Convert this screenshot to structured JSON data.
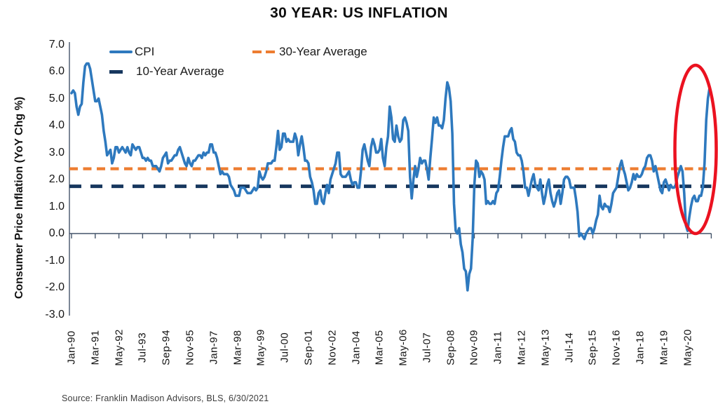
{
  "title": "30 YEAR: US INFLATION",
  "legend": {
    "cpi": "CPI",
    "avg30": "30-Year Average",
    "avg10": "10-Year Average"
  },
  "y_axis": {
    "title": "Consumer Price Inflation (YoY Chg %)",
    "ticks": [
      "7.0",
      "6.0",
      "5.0",
      "4.0",
      "3.0",
      "2.0",
      "1.0",
      "0.0",
      "-1.0",
      "-2.0",
      "-3.0"
    ]
  },
  "source": "Source: Franklin Madison Advisors, BLS, 6/30/2021",
  "colors": {
    "cpi_line": "#2E79BE",
    "avg30_line": "#ED7D31",
    "avg10_line": "#17375E",
    "axis": "#44546A",
    "highlight_ellipse": "#EB1220"
  },
  "chart_data": {
    "type": "line",
    "title": "30 YEAR: US INFLATION",
    "xlabel": "",
    "ylabel": "Consumer Price Inflation (YoY Chg %)",
    "ylim": [
      -3.0,
      7.0
    ],
    "y_tick_step": 1.0,
    "grid": false,
    "legend_position": "top-left inside",
    "frequency": "monthly",
    "x_start": "Jan-1990",
    "x_end": "Jun-2021",
    "x_tick_labels": [
      "Jan-90",
      "Mar-91",
      "May-92",
      "Jul-93",
      "Sep-94",
      "Nov-95",
      "Jan-97",
      "Mar-98",
      "May-99",
      "Jul-00",
      "Sep-01",
      "Nov-02",
      "Jan-04",
      "Mar-05",
      "May-06",
      "Jul-07",
      "Sep-08",
      "Nov-09",
      "Jan-11",
      "Mar-12",
      "May-13",
      "Jul-14",
      "Sep-15",
      "Nov-16",
      "Jan-18",
      "Mar-19",
      "May-20"
    ],
    "x_tick_interval_months": 14,
    "series": [
      {
        "name": "CPI",
        "type": "line",
        "color": "#2E79BE",
        "values": [
          5.2,
          5.3,
          5.2,
          4.7,
          4.4,
          4.7,
          4.8,
          5.6,
          6.2,
          6.3,
          6.3,
          6.1,
          5.7,
          5.3,
          4.9,
          4.9,
          5.0,
          4.7,
          4.4,
          3.8,
          3.4,
          2.9,
          3.0,
          3.1,
          2.6,
          2.8,
          3.2,
          3.2,
          3.0,
          3.1,
          3.2,
          3.1,
          3.0,
          3.2,
          3.0,
          2.9,
          3.3,
          3.2,
          3.1,
          3.2,
          3.2,
          3.0,
          2.8,
          2.8,
          2.7,
          2.8,
          2.7,
          2.7,
          2.5,
          2.5,
          2.5,
          2.4,
          2.3,
          2.5,
          2.8,
          2.9,
          3.0,
          2.6,
          2.7,
          2.7,
          2.8,
          2.9,
          2.9,
          3.1,
          3.2,
          3.0,
          2.8,
          2.6,
          2.5,
          2.8,
          2.6,
          2.5,
          2.7,
          2.7,
          2.8,
          2.9,
          2.9,
          2.8,
          3.0,
          2.9,
          3.0,
          3.0,
          3.3,
          3.3,
          3.0,
          3.0,
          2.8,
          2.5,
          2.2,
          2.3,
          2.2,
          2.2,
          2.2,
          2.1,
          1.8,
          1.7,
          1.6,
          1.4,
          1.4,
          1.4,
          1.7,
          1.7,
          1.7,
          1.6,
          1.5,
          1.5,
          1.5,
          1.6,
          1.7,
          1.6,
          1.7,
          2.3,
          2.1,
          2.0,
          2.1,
          2.3,
          2.6,
          2.6,
          2.6,
          2.7,
          2.7,
          3.2,
          3.8,
          3.1,
          3.2,
          3.7,
          3.7,
          3.4,
          3.5,
          3.4,
          3.4,
          3.4,
          3.7,
          3.5,
          2.9,
          3.3,
          3.6,
          3.2,
          2.7,
          2.7,
          2.6,
          2.1,
          1.9,
          1.6,
          1.1,
          1.1,
          1.5,
          1.6,
          1.2,
          1.1,
          1.5,
          1.8,
          1.5,
          2.0,
          2.2,
          2.4,
          2.6,
          3.0,
          3.0,
          2.2,
          2.1,
          2.1,
          2.1,
          2.2,
          2.3,
          2.0,
          1.8,
          1.9,
          1.9,
          1.7,
          1.7,
          2.3,
          3.1,
          3.3,
          3.0,
          2.7,
          2.5,
          3.2,
          3.5,
          3.3,
          3.0,
          3.0,
          3.1,
          3.5,
          2.8,
          2.5,
          3.2,
          3.6,
          4.7,
          4.3,
          3.5,
          3.4,
          4.0,
          3.6,
          3.4,
          3.5,
          4.2,
          4.3,
          4.1,
          3.8,
          2.1,
          1.3,
          2.0,
          2.5,
          2.1,
          2.4,
          2.8,
          2.6,
          2.7,
          2.7,
          2.4,
          2.0,
          2.8,
          3.5,
          4.3,
          4.1,
          4.3,
          4.0,
          4.0,
          3.9,
          4.2,
          5.0,
          5.6,
          5.4,
          4.9,
          3.7,
          1.1,
          0.1,
          0.0,
          0.2,
          -0.4,
          -0.7,
          -1.3,
          -1.4,
          -2.1,
          -1.5,
          -1.3,
          -0.2,
          1.8,
          2.7,
          2.6,
          2.1,
          2.3,
          2.2,
          2.0,
          1.1,
          1.2,
          1.1,
          1.1,
          1.2,
          1.1,
          1.5,
          1.6,
          2.1,
          2.7,
          3.2,
          3.6,
          3.6,
          3.6,
          3.8,
          3.9,
          3.5,
          3.4,
          3.0,
          2.9,
          2.9,
          2.7,
          2.3,
          1.7,
          1.7,
          1.4,
          1.7,
          2.0,
          2.2,
          1.8,
          1.7,
          1.6,
          2.0,
          1.5,
          1.1,
          1.4,
          1.8,
          2.0,
          1.5,
          1.2,
          1.0,
          1.2,
          1.5,
          1.6,
          1.1,
          1.5,
          2.0,
          2.1,
          2.1,
          2.0,
          1.7,
          1.7,
          1.7,
          1.3,
          0.8,
          -0.1,
          0.0,
          -0.1,
          -0.2,
          0.0,
          0.1,
          0.2,
          0.2,
          0.0,
          0.2,
          0.5,
          0.7,
          1.4,
          1.0,
          0.9,
          1.1,
          1.0,
          1.0,
          0.8,
          1.1,
          1.5,
          1.6,
          1.7,
          2.1,
          2.5,
          2.7,
          2.4,
          2.2,
          1.9,
          1.6,
          1.7,
          1.9,
          2.2,
          2.0,
          2.2,
          2.1,
          2.1,
          2.2,
          2.4,
          2.5,
          2.8,
          2.9,
          2.9,
          2.7,
          2.3,
          2.5,
          2.2,
          1.9,
          1.6,
          1.5,
          1.9,
          2.0,
          1.8,
          1.6,
          1.8,
          1.7,
          1.7,
          1.8,
          2.1,
          2.3,
          2.5,
          2.3,
          1.5,
          0.3,
          0.1,
          0.6,
          1.0,
          1.3,
          1.4,
          1.2,
          1.2,
          1.4,
          1.4,
          1.7,
          2.6,
          4.2,
          5.0,
          5.4
        ]
      },
      {
        "name": "30-Year Average",
        "type": "dashed-hline",
        "color": "#ED7D31",
        "value": 2.4
      },
      {
        "name": "10-Year Average",
        "type": "dashed-hline",
        "color": "#17375E",
        "value": 1.75
      }
    ],
    "annotation": {
      "type": "ellipse",
      "color": "#EB1220",
      "highlights": "May-2020 dip (0.1%) through Jun-2021 spike (5.4%)"
    }
  }
}
